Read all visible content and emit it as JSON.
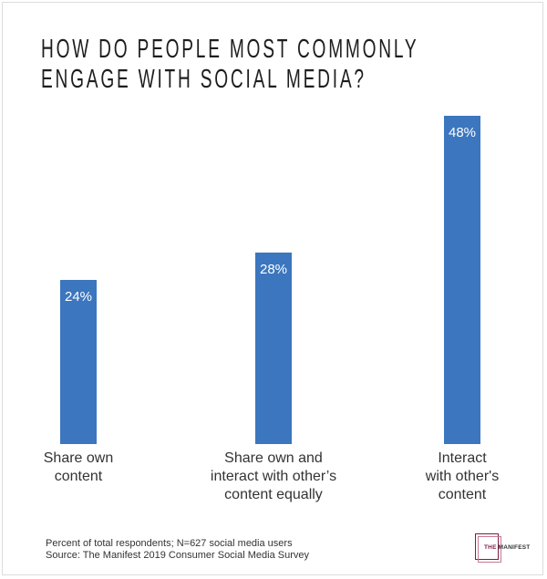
{
  "chart_data": {
    "type": "bar",
    "title": "HOW DO PEOPLE MOST COMMONLY ENGAGE WITH SOCIAL MEDIA?",
    "title_lines": [
      "HOW DO PEOPLE MOST COMMONLY",
      "ENGAGE WITH SOCIAL MEDIA?"
    ],
    "categories": [
      [
        "Share own",
        "content"
      ],
      [
        "Share own and",
        "interact with other’s",
        "content equally"
      ],
      [
        "Interact",
        "with other's",
        "content"
      ]
    ],
    "values": [
      24,
      28,
      48
    ],
    "data_labels": [
      "24%",
      "28%",
      "48%"
    ],
    "unit": "%",
    "ylim": [
      0,
      48
    ],
    "grid": false,
    "bar_color": "#3b76bf",
    "xlabel": "",
    "ylabel": ""
  },
  "footer": {
    "note": "Percent of total respondents; N=627 social media users",
    "source": "Source: The Manifest 2019 Consumer Social Media Survey"
  },
  "logo": {
    "the": "THE",
    "name": "MANIFEST",
    "color": "#7a1f45"
  }
}
